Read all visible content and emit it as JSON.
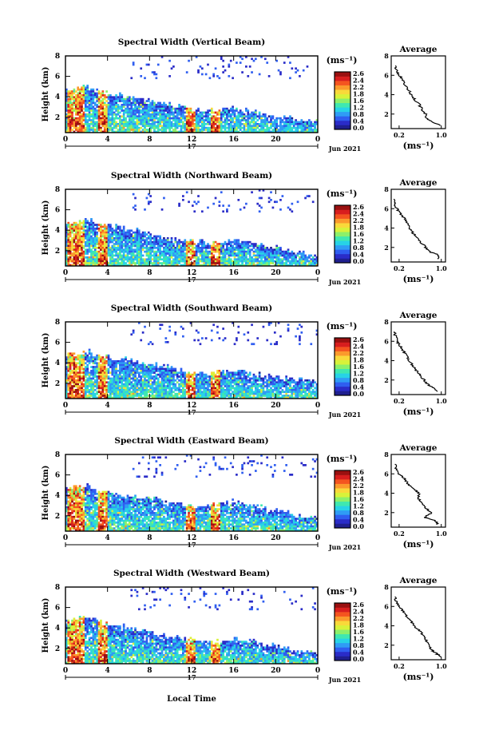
{
  "figure": {
    "xlabel": "Local Time",
    "date_label": "Jun 2021",
    "day_label": "17",
    "ylabel": "Height (km)",
    "avg_title": "Average",
    "avg_xlabel": "(ms⁻¹)",
    "cbar_unit": "(ms⁻¹)"
  },
  "chart_data": [
    {
      "type": "heatmap",
      "title": "Spectral Width (Vertical Beam)",
      "x_ticks": [
        "0",
        "4",
        "8",
        "12",
        "16",
        "20",
        "0"
      ],
      "y_ticks": [
        "2",
        "4",
        "6",
        "8"
      ],
      "ylim": [
        0.5,
        8
      ],
      "xlim": [
        0,
        24
      ],
      "colorbar": {
        "ticks": [
          "2.6",
          "2.4",
          "2.2",
          "1.8",
          "1.6",
          "1.2",
          "0.8",
          "0.4",
          "0.0"
        ],
        "range": [
          0,
          2.8
        ]
      },
      "top_km": [
        4.6,
        4.9,
        4.2,
        4.0,
        3.6,
        3.1,
        2.7,
        2.6,
        2.9,
        2.4,
        2.0,
        1.7,
        1.5
      ],
      "average": {
        "x_ticks": [
          "0.2",
          "1.0"
        ],
        "y_ticks": [
          "2",
          "4",
          "6",
          "8"
        ],
        "height": [
          0.8,
          1.2,
          1.5,
          2.0,
          2.5,
          3.0,
          3.5,
          4.0,
          4.5,
          5.0,
          5.5,
          6.0,
          6.5,
          7.0
        ],
        "value": [
          0.98,
          0.82,
          0.72,
          0.7,
          0.63,
          0.58,
          0.5,
          0.42,
          0.38,
          0.3,
          0.28,
          0.2,
          0.15,
          0.13
        ]
      }
    },
    {
      "type": "heatmap",
      "title": "Spectral Width (Northward Beam)",
      "x_ticks": [
        "0",
        "4",
        "8",
        "12",
        "16",
        "20",
        "0"
      ],
      "y_ticks": [
        "2",
        "4",
        "6",
        "8"
      ],
      "ylim": [
        0.5,
        8
      ],
      "xlim": [
        0,
        24
      ],
      "colorbar": {
        "ticks": [
          "2.6",
          "2.4",
          "2.2",
          "1.8",
          "1.6",
          "1.2",
          "0.8",
          "0.4",
          "0.0"
        ],
        "range": [
          0,
          2.8
        ]
      },
      "top_km": [
        4.6,
        4.9,
        4.4,
        4.0,
        3.5,
        3.1,
        2.8,
        2.7,
        3.0,
        2.6,
        2.2,
        1.8,
        1.4
      ],
      "average": {
        "x_ticks": [
          "0.2",
          "1.0"
        ],
        "y_ticks": [
          "2",
          "4",
          "6",
          "8"
        ],
        "height": [
          0.8,
          1.2,
          1.5,
          2.0,
          2.5,
          3.0,
          3.5,
          4.0,
          4.5,
          5.0,
          5.5,
          6.0,
          6.5,
          7.0
        ],
        "value": [
          0.95,
          0.96,
          0.8,
          0.7,
          0.62,
          0.55,
          0.46,
          0.4,
          0.35,
          0.3,
          0.22,
          0.16,
          0.12,
          0.1
        ]
      }
    },
    {
      "type": "heatmap",
      "title": "Spectral Width (Southward Beam)",
      "x_ticks": [
        "0",
        "4",
        "8",
        "12",
        "16",
        "20",
        "0"
      ],
      "y_ticks": [
        "2",
        "4",
        "6",
        "8"
      ],
      "ylim": [
        0.5,
        8
      ],
      "xlim": [
        0,
        24
      ],
      "colorbar": {
        "ticks": [
          "2.6",
          "2.4",
          "2.2",
          "1.8",
          "1.6",
          "1.2",
          "0.8",
          "0.4",
          "0.0"
        ],
        "range": [
          0,
          2.8
        ]
      },
      "top_km": [
        4.8,
        5.0,
        4.5,
        4.2,
        3.9,
        3.4,
        3.0,
        2.9,
        3.2,
        2.8,
        2.5,
        2.2,
        2.0
      ],
      "average": {
        "x_ticks": [
          "0.2",
          "1.0"
        ],
        "y_ticks": [
          "2",
          "4",
          "6",
          "8"
        ],
        "height": [
          0.8,
          1.2,
          1.5,
          2.0,
          2.5,
          3.0,
          3.5,
          4.0,
          4.5,
          5.0,
          5.5,
          6.0,
          6.5,
          7.0
        ],
        "value": [
          0.92,
          0.85,
          0.75,
          0.68,
          0.6,
          0.52,
          0.46,
          0.4,
          0.34,
          0.28,
          0.22,
          0.16,
          0.13,
          0.11
        ]
      }
    },
    {
      "type": "heatmap",
      "title": "Spectral Width (Eastward Beam)",
      "x_ticks": [
        "0",
        "4",
        "8",
        "12",
        "16",
        "20",
        "0"
      ],
      "y_ticks": [
        "2",
        "4",
        "6",
        "8"
      ],
      "ylim": [
        0.5,
        8
      ],
      "xlim": [
        0,
        24
      ],
      "colorbar": {
        "ticks": [
          "2.6",
          "2.4",
          "2.2",
          "1.8",
          "1.6",
          "1.2",
          "0.8",
          "0.4",
          "0.0"
        ],
        "range": [
          0,
          2.8
        ]
      },
      "top_km": [
        4.6,
        4.9,
        4.2,
        3.9,
        3.6,
        3.3,
        2.9,
        3.0,
        3.3,
        2.9,
        2.5,
        2.0,
        1.8
      ],
      "average": {
        "x_ticks": [
          "0.2",
          "1.0"
        ],
        "y_ticks": [
          "2",
          "4",
          "6",
          "8"
        ],
        "height": [
          0.8,
          1.2,
          1.5,
          2.0,
          2.5,
          3.0,
          3.5,
          4.0,
          4.5,
          5.0,
          5.5,
          6.0,
          6.5,
          7.0
        ],
        "value": [
          0.92,
          0.88,
          0.68,
          0.82,
          0.7,
          0.64,
          0.55,
          0.58,
          0.45,
          0.36,
          0.3,
          0.2,
          0.15,
          0.12
        ]
      }
    },
    {
      "type": "heatmap",
      "title": "Spectral Width (Westward Beam)",
      "x_ticks": [
        "0",
        "4",
        "8",
        "12",
        "16",
        "20",
        "0"
      ],
      "y_ticks": [
        "2",
        "4",
        "6",
        "8"
      ],
      "ylim": [
        0.5,
        8
      ],
      "xlim": [
        0,
        24
      ],
      "colorbar": {
        "ticks": [
          "2.6",
          "2.4",
          "2.2",
          "1.8",
          "1.6",
          "1.2",
          "0.8",
          "0.4",
          "0.0"
        ],
        "range": [
          0,
          2.8
        ]
      },
      "top_km": [
        4.5,
        5.0,
        4.3,
        3.9,
        3.5,
        3.1,
        2.8,
        2.6,
        2.9,
        2.5,
        2.1,
        1.7,
        1.5
      ],
      "average": {
        "x_ticks": [
          "0.2",
          "1.0"
        ],
        "y_ticks": [
          "2",
          "4",
          "6",
          "8"
        ],
        "height": [
          0.8,
          1.2,
          1.5,
          2.0,
          2.5,
          3.0,
          3.5,
          4.0,
          4.5,
          5.0,
          5.5,
          6.0,
          6.5,
          7.0
        ],
        "value": [
          0.98,
          0.9,
          0.82,
          0.76,
          0.72,
          0.66,
          0.58,
          0.48,
          0.42,
          0.34,
          0.28,
          0.2,
          0.14,
          0.12
        ]
      }
    }
  ],
  "jet_colors": [
    "#1f1f8f",
    "#2a2cc8",
    "#2f5ef0",
    "#2f9cf5",
    "#27d3e6",
    "#3fe8b0",
    "#8cf06a",
    "#d8f23a",
    "#f9d93a",
    "#fb9a2c",
    "#f4541f",
    "#d81e1e",
    "#9a1010"
  ]
}
